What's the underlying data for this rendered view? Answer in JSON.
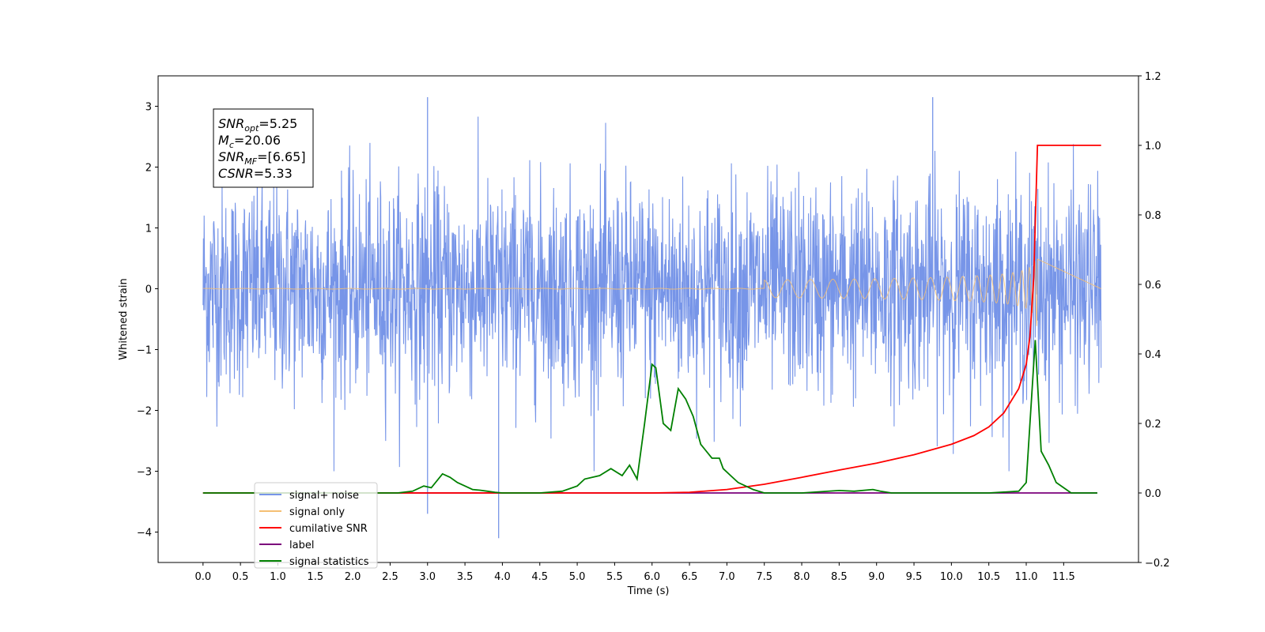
{
  "chart_data": {
    "type": "line",
    "xlabel": "Time (s)",
    "ylabel_left": "Whitened strain",
    "ylabel_right": "",
    "xlim": [
      -0.6,
      12.5
    ],
    "ylim_left": [
      -4.5,
      3.5
    ],
    "ylim_right": [
      -0.2,
      1.2
    ],
    "x_ticks": [
      "0.0",
      "0.5",
      "1.0",
      "1.5",
      "2.0",
      "2.5",
      "3.0",
      "3.5",
      "4.0",
      "4.5",
      "5.0",
      "5.5",
      "6.0",
      "6.5",
      "7.0",
      "7.5",
      "8.0",
      "8.5",
      "9.0",
      "9.5",
      "10.0",
      "10.5",
      "11.0",
      "11.5"
    ],
    "y_ticks_left": [
      "−4",
      "−3",
      "−2",
      "−1",
      "0",
      "1",
      "2",
      "3"
    ],
    "y_ticks_right": [
      "−0.2",
      "0.0",
      "0.2",
      "0.4",
      "0.6",
      "0.8",
      "1.0",
      "1.2"
    ],
    "annotation": [
      {
        "sym": "SNR",
        "sub": "opt",
        "val": "=5.25"
      },
      {
        "sym": "M",
        "sub": "c",
        "val": "=20.06"
      },
      {
        "sym": "SNR",
        "sub": "MF",
        "val": "=[6.65]"
      },
      {
        "sym": "CSNR",
        "sub": "",
        "val": "=5.33"
      }
    ],
    "legend_position": "lower-left",
    "series": [
      {
        "name": "signal+ noise",
        "color": "#7795e8",
        "axis": "left",
        "kind": "noise",
        "x_range": [
          0,
          12.0
        ],
        "amplitude_typical": 1.2,
        "extremes": [
          {
            "x": 3.95,
            "y": -4.1
          },
          {
            "x": 3.0,
            "y": 3.15
          },
          {
            "x": 9.75,
            "y": 3.15
          },
          {
            "x": 3.0,
            "y": -3.7
          }
        ]
      },
      {
        "name": "signal only",
        "color": "#f5bf74",
        "axis": "left",
        "kind": "chirp",
        "x_range": [
          0,
          11.15
        ],
        "peak_amplitude": 0.95,
        "merger_time": 11.15
      },
      {
        "name": "cumilative SNR",
        "color": "#ff0000",
        "axis": "right",
        "x": [
          0,
          6.0,
          6.5,
          7.0,
          7.5,
          8.0,
          8.5,
          9.0,
          9.5,
          10.0,
          10.3,
          10.5,
          10.7,
          10.9,
          11.0,
          11.05,
          11.1,
          11.15,
          12.0
        ],
        "y": [
          0.0,
          0.0,
          0.002,
          0.01,
          0.025,
          0.045,
          0.066,
          0.086,
          0.11,
          0.14,
          0.165,
          0.19,
          0.23,
          0.3,
          0.37,
          0.45,
          0.62,
          1.0,
          1.0
        ]
      },
      {
        "name": "label",
        "color": "#7b007b",
        "axis": "right",
        "x": [
          0,
          11.95
        ],
        "y": [
          0,
          0
        ]
      },
      {
        "name": "signal statistics",
        "color": "#008000",
        "axis": "right",
        "x": [
          0,
          2.6,
          2.8,
          2.95,
          3.05,
          3.2,
          3.3,
          3.4,
          3.5,
          3.6,
          3.7,
          3.8,
          3.9,
          4.0,
          4.5,
          4.8,
          5.0,
          5.1,
          5.3,
          5.45,
          5.6,
          5.7,
          5.8,
          5.9,
          6.0,
          6.05,
          6.15,
          6.25,
          6.35,
          6.45,
          6.55,
          6.65,
          6.8,
          6.9,
          6.95,
          7.05,
          7.15,
          7.25,
          7.35,
          7.5,
          7.6,
          7.7,
          8.0,
          8.5,
          8.7,
          8.95,
          9.05,
          9.2,
          10.5,
          10.9,
          11.0,
          11.05,
          11.12,
          11.2,
          11.3,
          11.4,
          11.6,
          11.95
        ],
        "y": [
          0.0,
          0.0,
          0.005,
          0.02,
          0.015,
          0.055,
          0.045,
          0.03,
          0.02,
          0.01,
          0.008,
          0.005,
          0.002,
          0.0,
          0.0,
          0.005,
          0.02,
          0.04,
          0.05,
          0.07,
          0.05,
          0.08,
          0.04,
          0.2,
          0.37,
          0.36,
          0.2,
          0.18,
          0.3,
          0.27,
          0.22,
          0.14,
          0.1,
          0.1,
          0.07,
          0.05,
          0.03,
          0.02,
          0.01,
          0.0,
          0.0,
          0.0,
          0.0,
          0.007,
          0.005,
          0.01,
          0.005,
          0.0,
          0.0,
          0.005,
          0.03,
          0.2,
          0.44,
          0.12,
          0.08,
          0.03,
          0.0,
          0.0
        ]
      }
    ]
  }
}
